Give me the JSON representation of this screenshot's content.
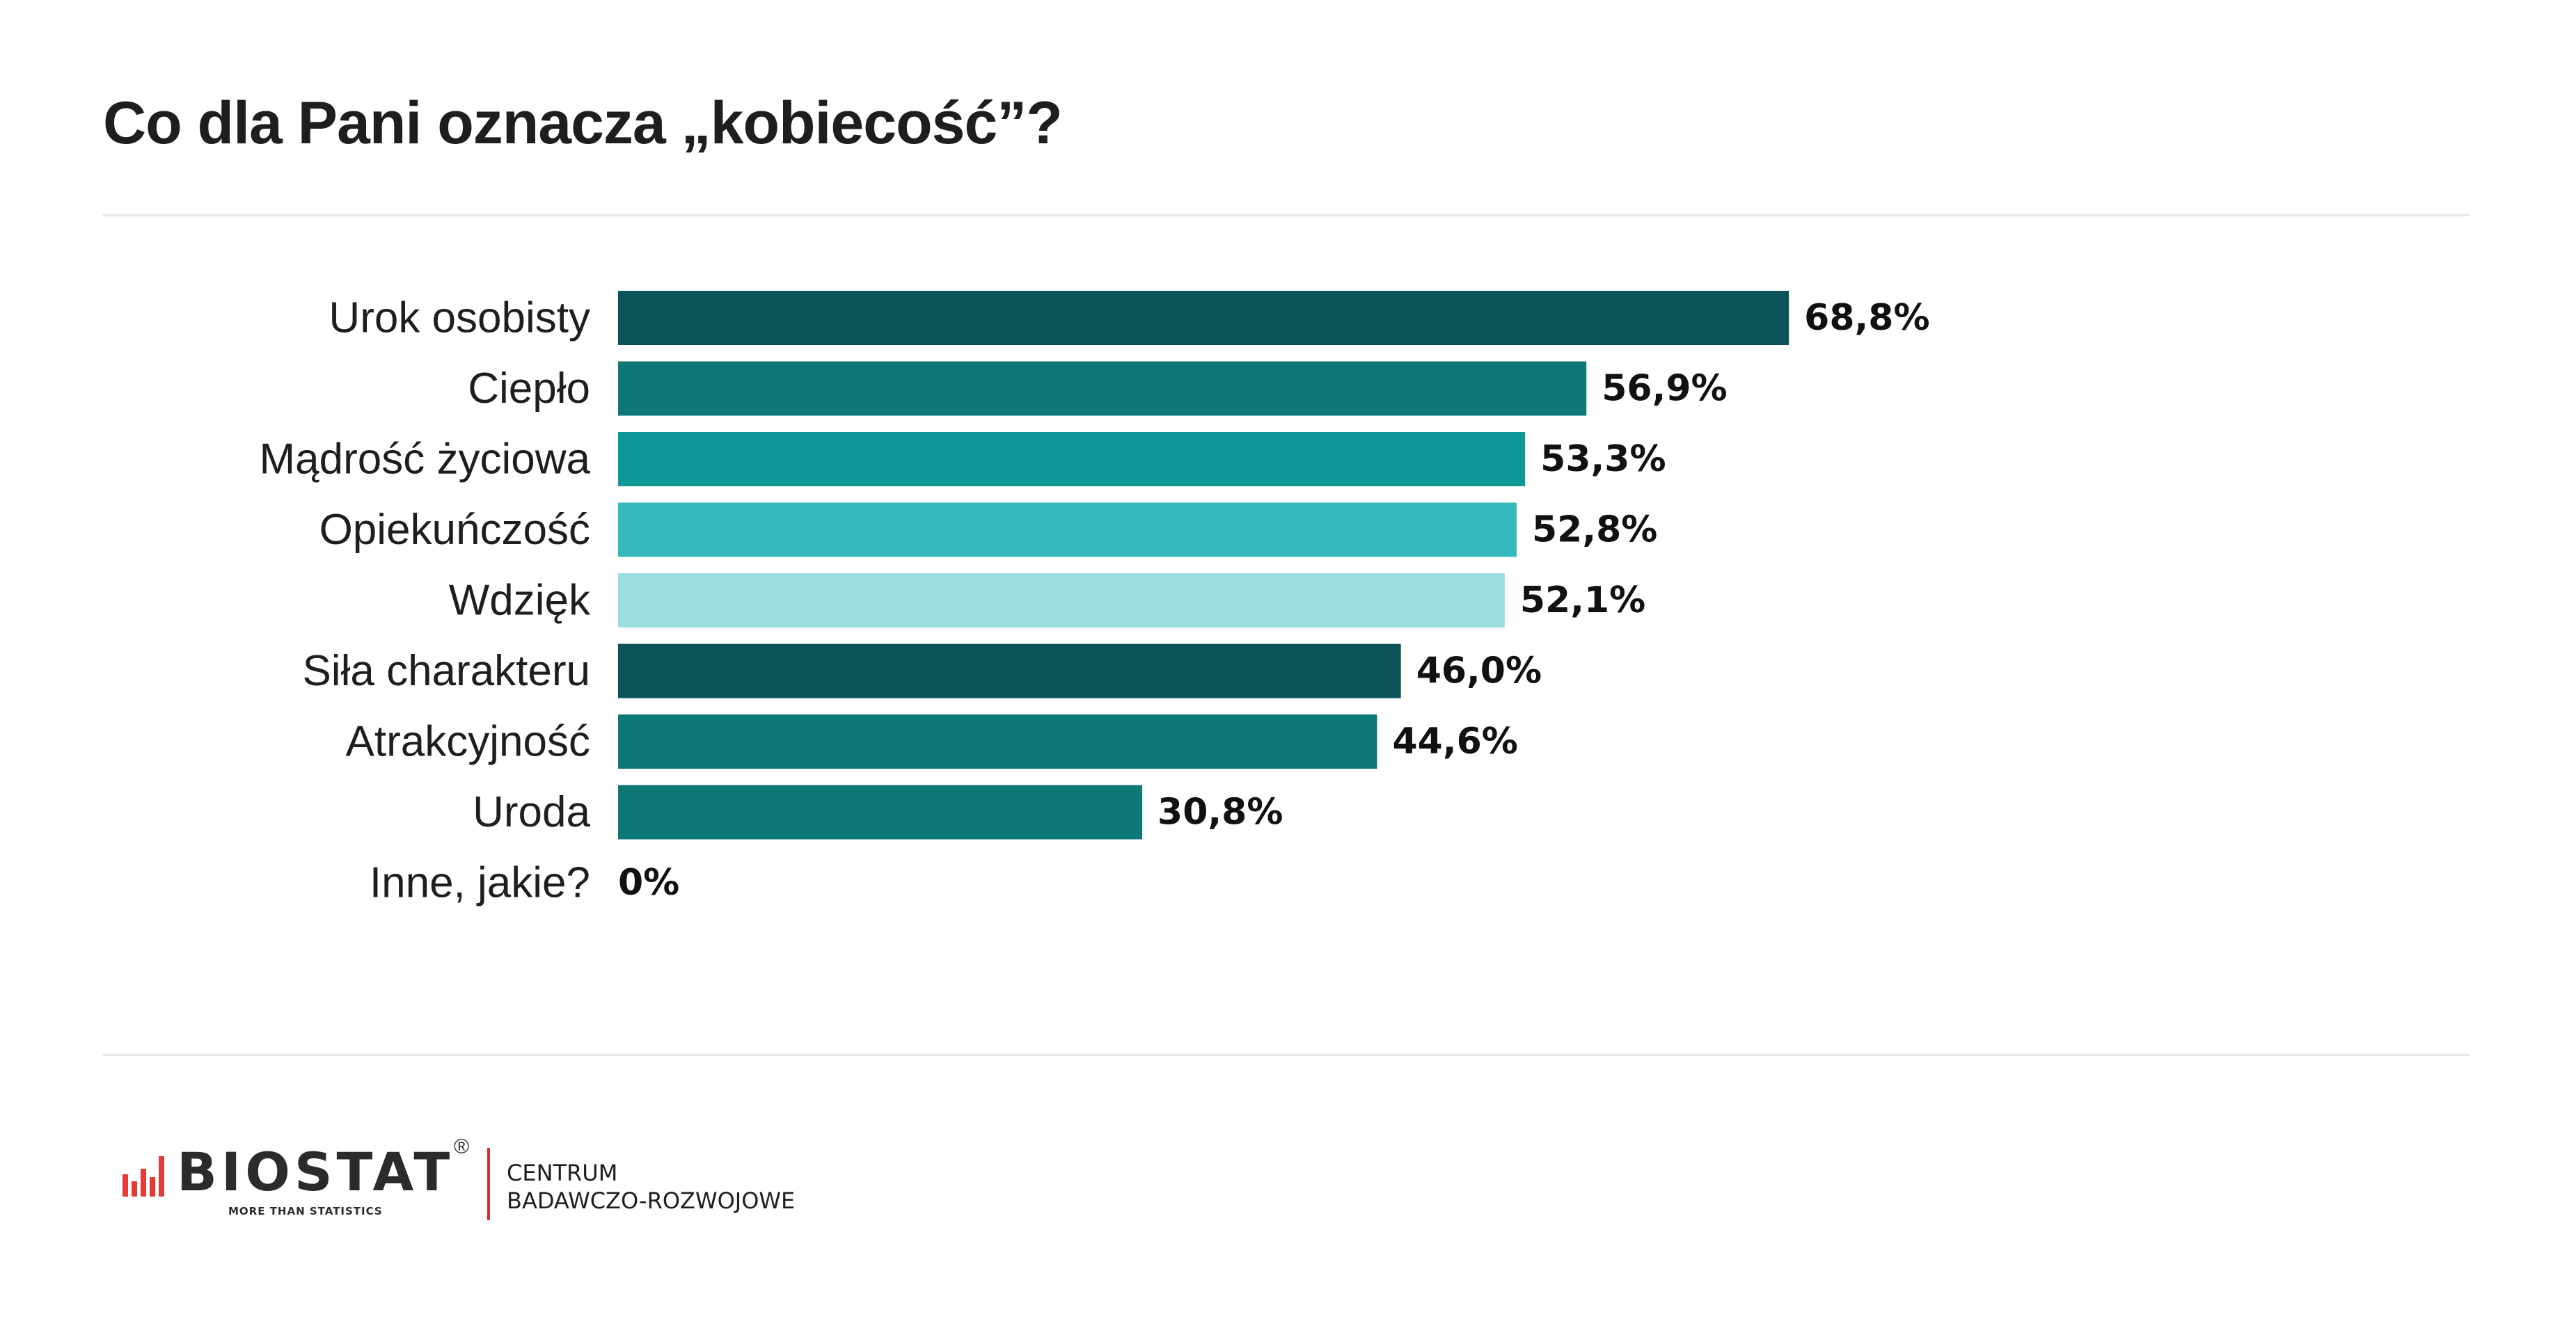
{
  "chart_data": {
    "type": "bar",
    "orientation": "horizontal",
    "title": "Co dla Pani oznacza „kobiecość”?",
    "categories": [
      "Urok osobisty",
      "Ciepło",
      "Mądrość życiowa",
      "Opiekuńczość",
      "Wdzięk",
      "Siła charakteru",
      "Atrakcyjność",
      "Uroda",
      "Inne, jakie?"
    ],
    "values": [
      68.8,
      56.9,
      53.3,
      52.8,
      52.1,
      46.0,
      44.6,
      30.8,
      0
    ],
    "value_labels": [
      "68,8%",
      "56,9%",
      "53,3%",
      "52,8%",
      "52,1%",
      "46,0%",
      "44,6%",
      "30,8%",
      "0%"
    ],
    "colors": [
      "#0b5358",
      "#0e7876",
      "#0f9898",
      "#33b8bc",
      "#9cdee0",
      "#0b5358",
      "#0e7876",
      "#0e7876",
      "#0e7876"
    ],
    "xlim": [
      0,
      100
    ],
    "grid": false,
    "legend": "none"
  },
  "footer": {
    "logo_text": "BIOSTAT",
    "logo_registered": "®",
    "logo_tagline": "MORE THAN STATISTICS",
    "centrum_line1": "CENTRUM",
    "centrum_line2": "BADAWCZO-ROZWOJOWE",
    "logo_accent_color": "#e53935"
  }
}
